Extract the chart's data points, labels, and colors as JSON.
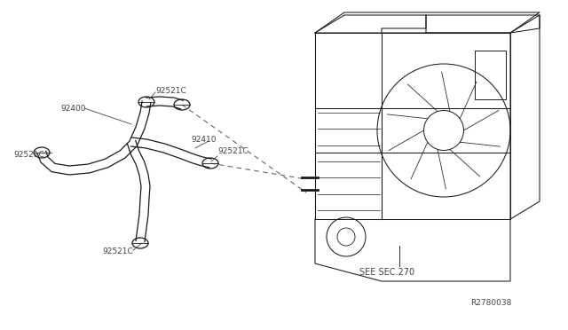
{
  "bg_color": "#ffffff",
  "line_color": "#1a1a1a",
  "label_color": "#444444",
  "dash_color": "#666666",
  "font_size_label": 6.5,
  "font_size_ref": 6.5,
  "labels": {
    "92521C_top": [
      0.273,
      0.735,
      "92521C"
    ],
    "92400": [
      0.105,
      0.67,
      "92400"
    ],
    "92521C_mid": [
      0.375,
      0.565,
      "92521C"
    ],
    "92410": [
      0.31,
      0.53,
      "92410"
    ],
    "92521C_left": [
      0.022,
      0.435,
      "92521C"
    ],
    "92521C_bot": [
      0.195,
      0.27,
      "92521C"
    ],
    "see_sec": [
      0.63,
      0.24,
      "SEE SEC.270"
    ],
    "ref_num": [
      0.83,
      0.055,
      "R2780038"
    ]
  }
}
